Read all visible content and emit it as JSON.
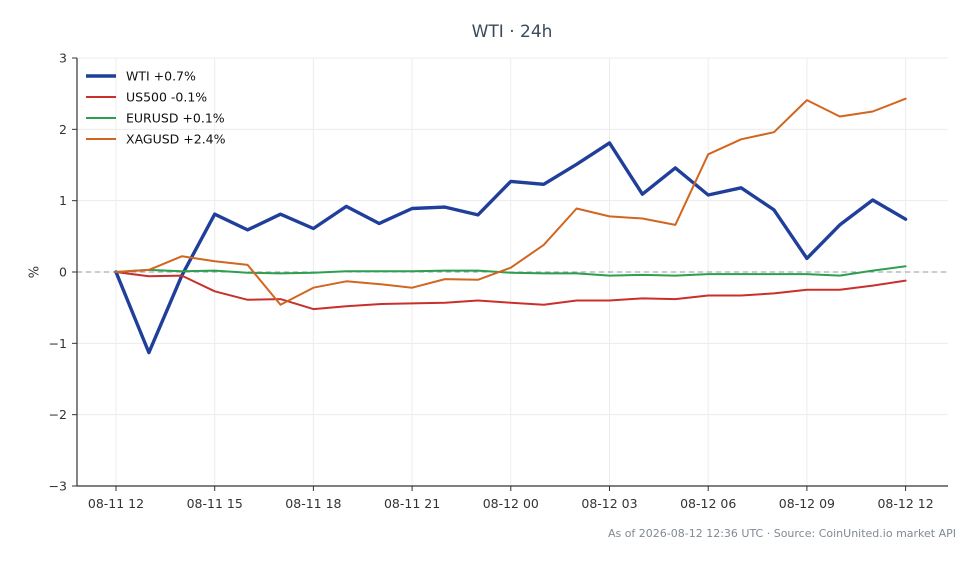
{
  "chart_data": {
    "type": "line",
    "title": "WTI · 24h",
    "xlabel": "",
    "ylabel": "%",
    "ylim": [
      -3,
      3
    ],
    "yticks": [
      -3,
      -2,
      -1,
      0,
      1,
      2,
      3
    ],
    "ytick_labels": [
      "−3",
      "−2",
      "−1",
      "0",
      "1",
      "2",
      "3"
    ],
    "x": [
      "08-11 12:00",
      "08-11 13:00",
      "08-11 14:00",
      "08-11 15:00",
      "08-11 16:00",
      "08-11 17:00",
      "08-11 18:00",
      "08-11 19:00",
      "08-11 20:00",
      "08-11 21:00",
      "08-11 22:00",
      "08-11 23:00",
      "08-12 00:00",
      "08-12 01:00",
      "08-12 02:00",
      "08-12 03:00",
      "08-12 04:00",
      "08-12 05:00",
      "08-12 06:00",
      "08-12 07:00",
      "08-12 08:00",
      "08-12 09:00",
      "08-12 10:00",
      "08-12 11:00",
      "08-12 12:00"
    ],
    "xticks": [
      "08-11 12",
      "08-11 15",
      "08-11 18",
      "08-11 21",
      "08-12 00",
      "08-12 03",
      "08-12 06",
      "08-12 09",
      "08-12 12"
    ],
    "grid": true,
    "zero_line": true,
    "legend_position": "top-left",
    "series": [
      {
        "name": "WTI +0.7%",
        "color": "#1f3f9a",
        "width": 3.4,
        "values": [
          0.0,
          -1.13,
          -0.05,
          0.81,
          0.59,
          0.81,
          0.61,
          0.92,
          0.68,
          0.89,
          0.91,
          0.8,
          1.27,
          1.23,
          1.51,
          1.81,
          1.09,
          1.46,
          1.08,
          1.18,
          0.87,
          0.19,
          0.66,
          1.01,
          0.74
        ]
      },
      {
        "name": "US500 -0.1%",
        "color": "#c9302c",
        "width": 2,
        "values": [
          0.0,
          -0.06,
          -0.05,
          -0.27,
          -0.39,
          -0.38,
          -0.52,
          -0.48,
          -0.45,
          -0.44,
          -0.43,
          -0.4,
          -0.43,
          -0.46,
          -0.4,
          -0.4,
          -0.37,
          -0.38,
          -0.33,
          -0.33,
          -0.3,
          -0.25,
          -0.25,
          -0.19,
          -0.12
        ]
      },
      {
        "name": "EURUSD +0.1%",
        "color": "#2e9e4f",
        "width": 2,
        "values": [
          0.0,
          0.03,
          0.01,
          0.02,
          -0.01,
          -0.02,
          -0.01,
          0.01,
          0.01,
          0.01,
          0.02,
          0.02,
          -0.01,
          -0.02,
          -0.02,
          -0.05,
          -0.04,
          -0.05,
          -0.03,
          -0.03,
          -0.03,
          -0.03,
          -0.05,
          0.02,
          0.08
        ]
      },
      {
        "name": "XAGUSD +2.4%",
        "color": "#d2651f",
        "width": 2,
        "values": [
          0.0,
          0.03,
          0.22,
          0.15,
          0.1,
          -0.46,
          -0.22,
          -0.13,
          -0.17,
          -0.22,
          -0.1,
          -0.11,
          0.06,
          0.38,
          0.89,
          0.78,
          0.75,
          0.66,
          1.65,
          1.86,
          1.96,
          2.41,
          2.18,
          2.25,
          2.43
        ]
      }
    ]
  },
  "footer": "As of 2026-08-12 12:36 UTC · Source: CoinUnited.io market API"
}
